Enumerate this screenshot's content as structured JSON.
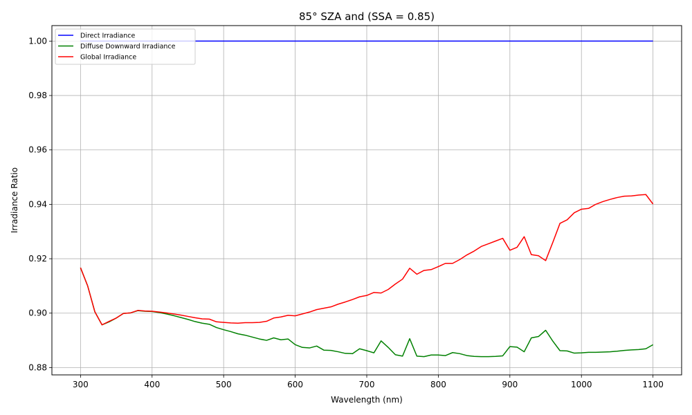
{
  "chart_data": {
    "type": "line",
    "title": "85° SZA and (SSA = 0.85)",
    "xlabel": "Wavelength (nm)",
    "ylabel": "Irradiance Ratio",
    "xlim": [
      260,
      1140
    ],
    "ylim": [
      0.8773,
      1.0057
    ],
    "xticks": [
      300,
      400,
      500,
      600,
      700,
      800,
      900,
      1000,
      1100
    ],
    "yticks": [
      0.88,
      0.9,
      0.92,
      0.94,
      0.96,
      0.98,
      1.0
    ],
    "ytick_labels": [
      "0.88",
      "0.90",
      "0.92",
      "0.94",
      "0.96",
      "0.98",
      "1.00"
    ],
    "grid": true,
    "legend_position": "top-left",
    "x": [
      300,
      310,
      320,
      330,
      340,
      350,
      360,
      370,
      380,
      390,
      400,
      410,
      420,
      430,
      440,
      450,
      460,
      470,
      480,
      490,
      500,
      510,
      520,
      530,
      540,
      550,
      560,
      570,
      580,
      590,
      600,
      610,
      620,
      630,
      640,
      650,
      660,
      670,
      680,
      690,
      700,
      710,
      720,
      730,
      740,
      750,
      760,
      770,
      780,
      790,
      800,
      810,
      820,
      830,
      840,
      850,
      860,
      870,
      880,
      890,
      900,
      910,
      920,
      930,
      940,
      950,
      960,
      970,
      980,
      990,
      1000,
      1010,
      1020,
      1030,
      1040,
      1050,
      1060,
      1070,
      1080,
      1090,
      1100
    ],
    "series": [
      {
        "name": "Direct Irradiance",
        "color": "#0000ff",
        "values": [
          1,
          1,
          1,
          1,
          1,
          1,
          1,
          1,
          1,
          1,
          1,
          1,
          1,
          1,
          1,
          1,
          1,
          1,
          1,
          1,
          1,
          1,
          1,
          1,
          1,
          1,
          1,
          1,
          1,
          1,
          1,
          1,
          1,
          1,
          1,
          1,
          1,
          1,
          1,
          1,
          1,
          1,
          1,
          1,
          1,
          1,
          1,
          1,
          1,
          1,
          1,
          1,
          1,
          1,
          1,
          1,
          1,
          1,
          1,
          1,
          1,
          1,
          1,
          1,
          1,
          1,
          1,
          1,
          1,
          1,
          1,
          1,
          1,
          1,
          1,
          1,
          1,
          1,
          1,
          1,
          1
        ]
      },
      {
        "name": "Diffuse Downward Irradiance",
        "color": "#008000",
        "values": [
          0.9167,
          0.91,
          0.9005,
          0.8957,
          0.8968,
          0.8982,
          0.8999,
          0.9001,
          0.9009,
          0.9007,
          0.9006,
          0.9002,
          0.8997,
          0.8991,
          0.8984,
          0.8977,
          0.8969,
          0.8963,
          0.8959,
          0.8947,
          0.8939,
          0.8932,
          0.8924,
          0.8919,
          0.8912,
          0.8905,
          0.89,
          0.8909,
          0.8902,
          0.8905,
          0.8884,
          0.8874,
          0.8872,
          0.8879,
          0.8864,
          0.8863,
          0.8858,
          0.8852,
          0.8851,
          0.8869,
          0.8862,
          0.8854,
          0.8898,
          0.8874,
          0.8847,
          0.8842,
          0.8906,
          0.8842,
          0.884,
          0.8846,
          0.8846,
          0.8844,
          0.8855,
          0.8851,
          0.8844,
          0.8841,
          0.884,
          0.884,
          0.8841,
          0.8843,
          0.8877,
          0.8875,
          0.8858,
          0.8909,
          0.8914,
          0.8937,
          0.8897,
          0.8862,
          0.8861,
          0.8853,
          0.8854,
          0.8856,
          0.8856,
          0.8857,
          0.8858,
          0.886,
          0.8863,
          0.8865,
          0.8866,
          0.8869,
          0.8884
        ]
      },
      {
        "name": "Global Irradiance",
        "color": "#ff0000",
        "values": [
          0.9167,
          0.91,
          0.9005,
          0.8957,
          0.897,
          0.8982,
          0.8999,
          0.9001,
          0.901,
          0.9008,
          0.9007,
          0.9004,
          0.9001,
          0.8997,
          0.8993,
          0.8988,
          0.8983,
          0.8979,
          0.8978,
          0.8968,
          0.8966,
          0.8964,
          0.8963,
          0.8965,
          0.8965,
          0.8966,
          0.897,
          0.8982,
          0.8986,
          0.8992,
          0.899,
          0.8997,
          0.9004,
          0.9013,
          0.9018,
          0.9023,
          0.9033,
          0.9041,
          0.905,
          0.906,
          0.9065,
          0.9076,
          0.9074,
          0.9087,
          0.9107,
          0.9125,
          0.9165,
          0.9143,
          0.9157,
          0.916,
          0.9171,
          0.9183,
          0.9183,
          0.9197,
          0.9214,
          0.9228,
          0.9245,
          0.9255,
          0.9265,
          0.9275,
          0.9231,
          0.9242,
          0.9281,
          0.9215,
          0.9211,
          0.9193,
          0.926,
          0.933,
          0.9343,
          0.9369,
          0.9382,
          0.9385,
          0.94,
          0.941,
          0.9418,
          0.9425,
          0.943,
          0.9431,
          0.9434,
          0.9436,
          0.9401
        ]
      }
    ]
  }
}
